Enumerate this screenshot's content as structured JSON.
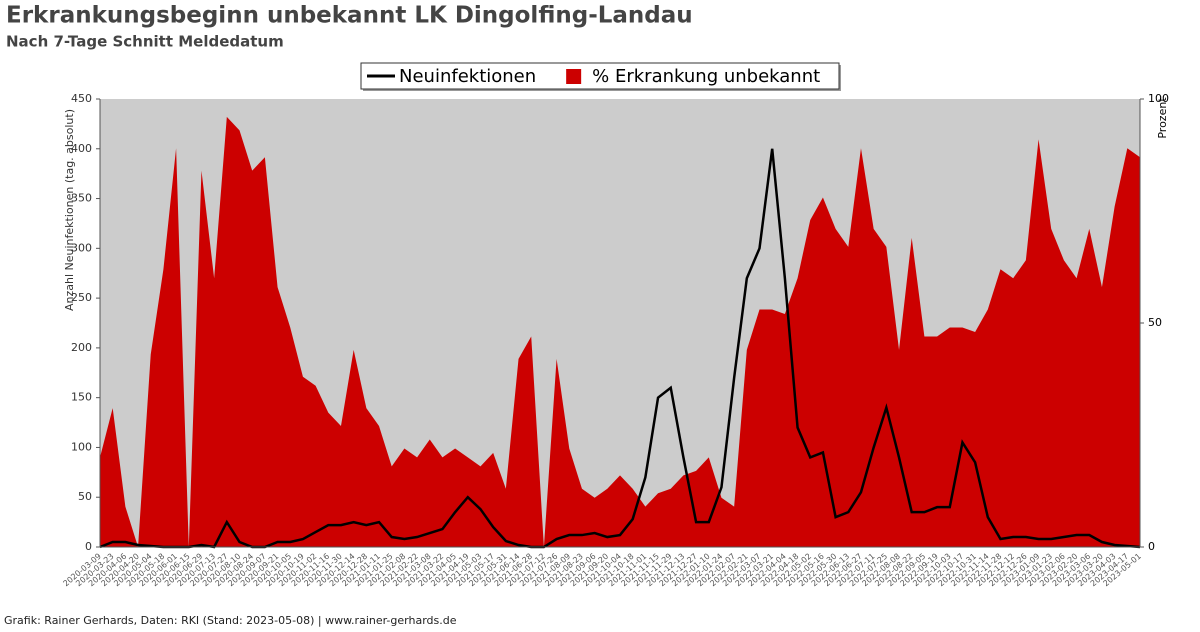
{
  "chart_data": {
    "type": "line-area",
    "title": "Erkrankungsbeginn unbekannt LK Dingolfing-Landau",
    "subtitle": "Nach 7-Tage Schnitt Meldedatum",
    "y_label": "Anzahl Neuinfektionen (tag. absolut)",
    "y2_label": "Prozent",
    "source": "Grafik: Rainer Gerhards, Daten: RKI (Stand: 2023-05-08) | www.rainer-gerhards.de",
    "legend": "top-center",
    "background": "#cccccc",
    "categories": [
      "2020-03-09",
      "2020-03-23",
      "2020-04-06",
      "2020-04-20",
      "2020-05-04",
      "2020-05-18",
      "2020-06-01",
      "2020-06-15",
      "2020-06-29",
      "2020-07-13",
      "2020-07-27",
      "2020-08-10",
      "2020-08-24",
      "2020-09-07",
      "2020-09-21",
      "2020-10-05",
      "2020-10-19",
      "2020-11-02",
      "2020-11-16",
      "2020-11-30",
      "2020-12-14",
      "2020-12-28",
      "2021-01-11",
      "2021-01-25",
      "2021-02-08",
      "2021-02-22",
      "2021-03-08",
      "2021-03-22",
      "2021-04-05",
      "2021-04-19",
      "2021-05-03",
      "2021-05-17",
      "2021-05-31",
      "2021-06-14",
      "2021-06-28",
      "2021-07-12",
      "2021-07-26",
      "2021-08-09",
      "2021-08-23",
      "2021-09-06",
      "2021-09-20",
      "2021-10-04",
      "2021-10-18",
      "2021-11-01",
      "2021-11-15",
      "2021-11-29",
      "2021-12-13",
      "2021-12-27",
      "2022-01-10",
      "2022-01-24",
      "2022-02-07",
      "2022-02-21",
      "2022-03-07",
      "2022-03-21",
      "2022-04-04",
      "2022-04-18",
      "2022-05-02",
      "2022-05-16",
      "2022-05-30",
      "2022-06-13",
      "2022-06-27",
      "2022-07-11",
      "2022-07-25",
      "2022-08-08",
      "2022-08-22",
      "2022-09-05",
      "2022-09-19",
      "2022-10-03",
      "2022-10-17",
      "2022-10-31",
      "2022-11-14",
      "2022-11-28",
      "2022-12-12",
      "2022-12-26",
      "2023-01-09",
      "2023-01-23",
      "2023-02-06",
      "2023-02-20",
      "2023-03-06",
      "2023-03-20",
      "2023-04-03",
      "2023-04-17",
      "2023-05-01"
    ],
    "series": [
      {
        "name": "% Erkrankung unbekannt",
        "type": "area",
        "axis": "y2",
        "color": "#cc0000",
        "values": [
          20,
          31,
          9,
          0,
          43,
          62,
          89,
          0,
          84,
          60,
          96,
          93,
          84,
          87,
          58,
          49,
          38,
          36,
          30,
          27,
          44,
          31,
          27,
          18,
          22,
          20,
          24,
          20,
          22,
          20,
          18,
          21,
          13,
          42,
          47,
          0,
          42,
          22,
          13,
          11,
          13,
          16,
          13,
          9,
          12,
          13,
          16,
          17,
          20,
          11,
          9,
          44,
          53,
          53,
          52,
          60,
          73,
          78,
          71,
          67,
          89,
          71,
          67,
          44,
          69,
          47,
          47,
          49,
          49,
          48,
          53,
          62,
          60,
          64,
          91,
          71,
          64,
          60,
          71,
          58,
          76,
          89,
          87
        ]
      },
      {
        "name": "Neuinfektionen",
        "type": "line",
        "color": "#000000",
        "values": [
          0,
          5,
          5,
          2,
          1,
          0,
          0,
          0,
          2,
          0,
          25,
          5,
          0,
          0,
          5,
          5,
          8,
          15,
          22,
          22,
          25,
          22,
          25,
          10,
          8,
          10,
          14,
          18,
          35,
          50,
          38,
          20,
          6,
          2,
          0,
          0,
          8,
          12,
          12,
          14,
          10,
          12,
          28,
          70,
          150,
          160,
          90,
          25,
          25,
          60,
          170,
          270,
          300,
          400,
          270,
          120,
          90,
          95,
          30,
          35,
          55,
          100,
          140,
          90,
          35,
          35,
          40,
          40,
          105,
          85,
          30,
          8,
          10,
          10,
          8,
          8,
          10,
          12,
          12,
          5,
          2,
          1,
          0
        ]
      }
    ],
    "ylim": [
      0,
      450
    ],
    "yticks": [
      0,
      50,
      100,
      150,
      200,
      250,
      300,
      350,
      400,
      450
    ],
    "y2lim": [
      0,
      100
    ],
    "y2ticks": [
      0,
      50,
      100
    ]
  }
}
